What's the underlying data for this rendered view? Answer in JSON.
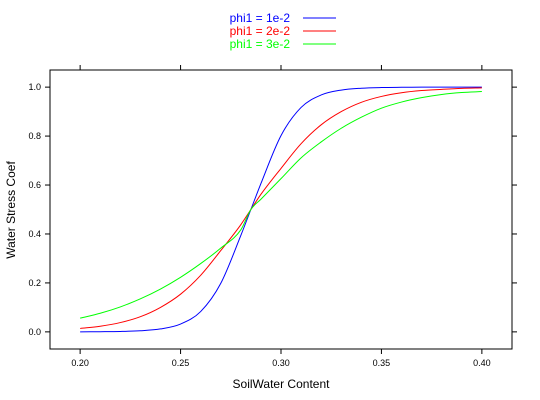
{
  "chart_data": {
    "type": "line",
    "title": "",
    "xlabel": "SoilWater Content",
    "ylabel": "Water Stress Coef",
    "xlim": [
      0.185,
      0.415
    ],
    "ylim": [
      -0.07,
      1.07
    ],
    "x_ticks": [
      0.2,
      0.25,
      0.3,
      0.35,
      0.4
    ],
    "x_tick_labels": [
      "0.20",
      "0.25",
      "0.30",
      "0.35",
      "0.40"
    ],
    "y_ticks": [
      0.0,
      0.2,
      0.4,
      0.6,
      0.8,
      1.0
    ],
    "y_tick_labels": [
      "0.0",
      "0.2",
      "0.4",
      "0.6",
      "0.8",
      "1.0"
    ],
    "grid": false,
    "legend_position": "top-center",
    "x": [
      0.2,
      0.21,
      0.22,
      0.23,
      0.24,
      0.25,
      0.26,
      0.27,
      0.28,
      0.285,
      0.29,
      0.3,
      0.31,
      0.32,
      0.33,
      0.34,
      0.35,
      0.36,
      0.37,
      0.38,
      0.39,
      0.4
    ],
    "series": [
      {
        "name": "phi1 = 1e-2",
        "color": "#0000ff",
        "values": [
          0.0002,
          0.0006,
          0.0016,
          0.0045,
          0.012,
          0.032,
          0.083,
          0.198,
          0.394,
          0.5,
          0.606,
          0.802,
          0.917,
          0.968,
          0.988,
          0.9955,
          0.9984,
          0.9994,
          0.9998,
          0.9999,
          1.0,
          1.0
        ]
      },
      {
        "name": "phi1 = 2e-2",
        "color": "#ff0000",
        "values": [
          0.014,
          0.023,
          0.038,
          0.062,
          0.1,
          0.154,
          0.231,
          0.332,
          0.438,
          0.5,
          0.562,
          0.668,
          0.769,
          0.846,
          0.9,
          0.938,
          0.962,
          0.977,
          0.986,
          0.991,
          0.995,
          0.997
        ]
      },
      {
        "name": "phi1 = 3e-2",
        "color": "#00ff00",
        "values": [
          0.056,
          0.076,
          0.102,
          0.135,
          0.175,
          0.223,
          0.279,
          0.342,
          0.417,
          0.5,
          0.542,
          0.626,
          0.711,
          0.776,
          0.832,
          0.877,
          0.914,
          0.939,
          0.957,
          0.97,
          0.978,
          0.982
        ]
      }
    ]
  }
}
